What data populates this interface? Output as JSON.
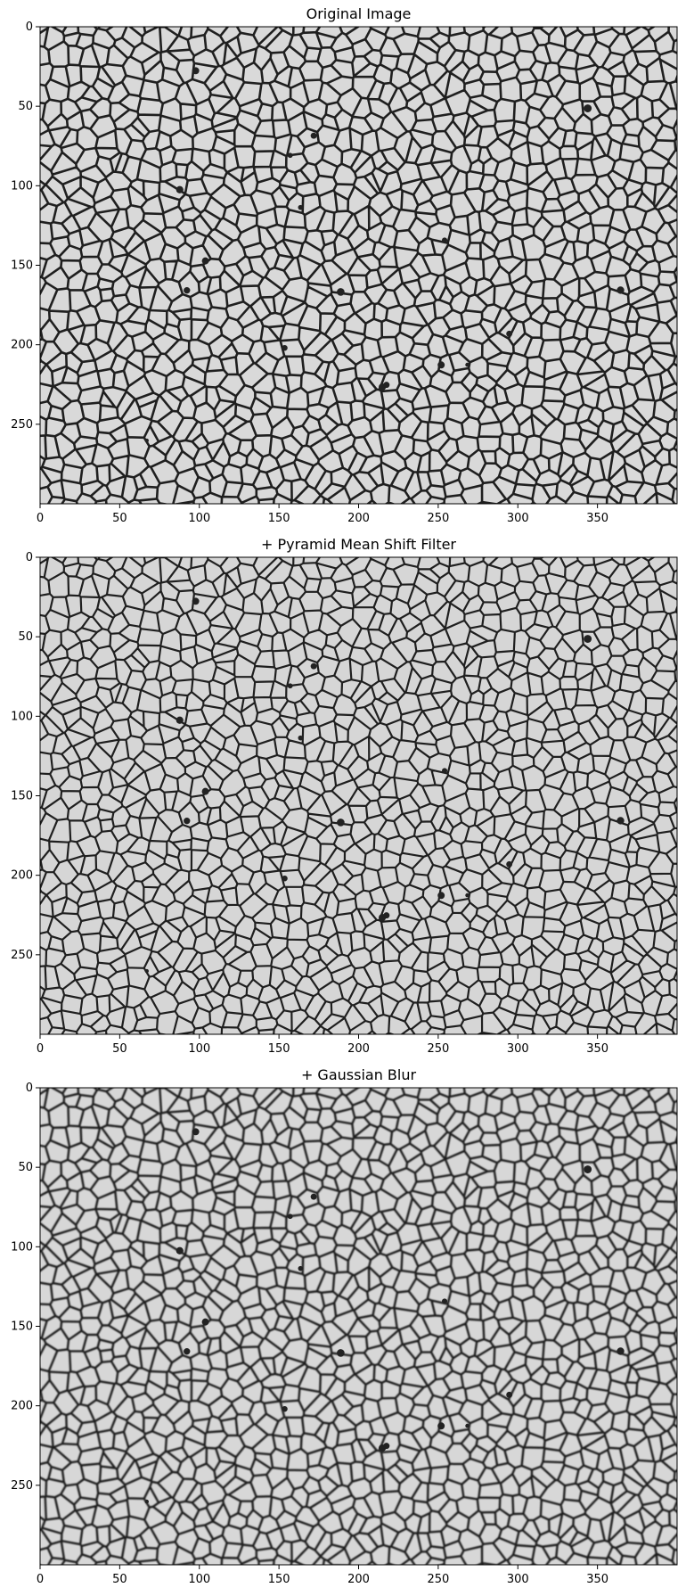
{
  "figure": {
    "panels": [
      {
        "title": "Original Image",
        "x_ticks": [
          "0",
          "50",
          "100",
          "150",
          "200",
          "250",
          "300",
          "350"
        ],
        "y_ticks": [
          "0",
          "50",
          "100",
          "150",
          "200",
          "250"
        ]
      },
      {
        "title": "+ Pyramid Mean Shift Filter",
        "x_ticks": [
          "0",
          "50",
          "100",
          "150",
          "200",
          "250",
          "300",
          "350"
        ],
        "y_ticks": [
          "0",
          "50",
          "100",
          "150",
          "200",
          "250"
        ]
      },
      {
        "title": "+ Gaussian Blur",
        "x_ticks": [
          "0",
          "50",
          "100",
          "150",
          "200",
          "250",
          "300",
          "350"
        ],
        "y_ticks": [
          "0",
          "50",
          "100",
          "150",
          "200",
          "250"
        ]
      }
    ],
    "colors": {
      "original_bg": "#d9d9d9",
      "filtered_bg": "#d6d6d6",
      "blur_bg": "#d7d7d7",
      "boundary": "#1f1f1f"
    }
  }
}
